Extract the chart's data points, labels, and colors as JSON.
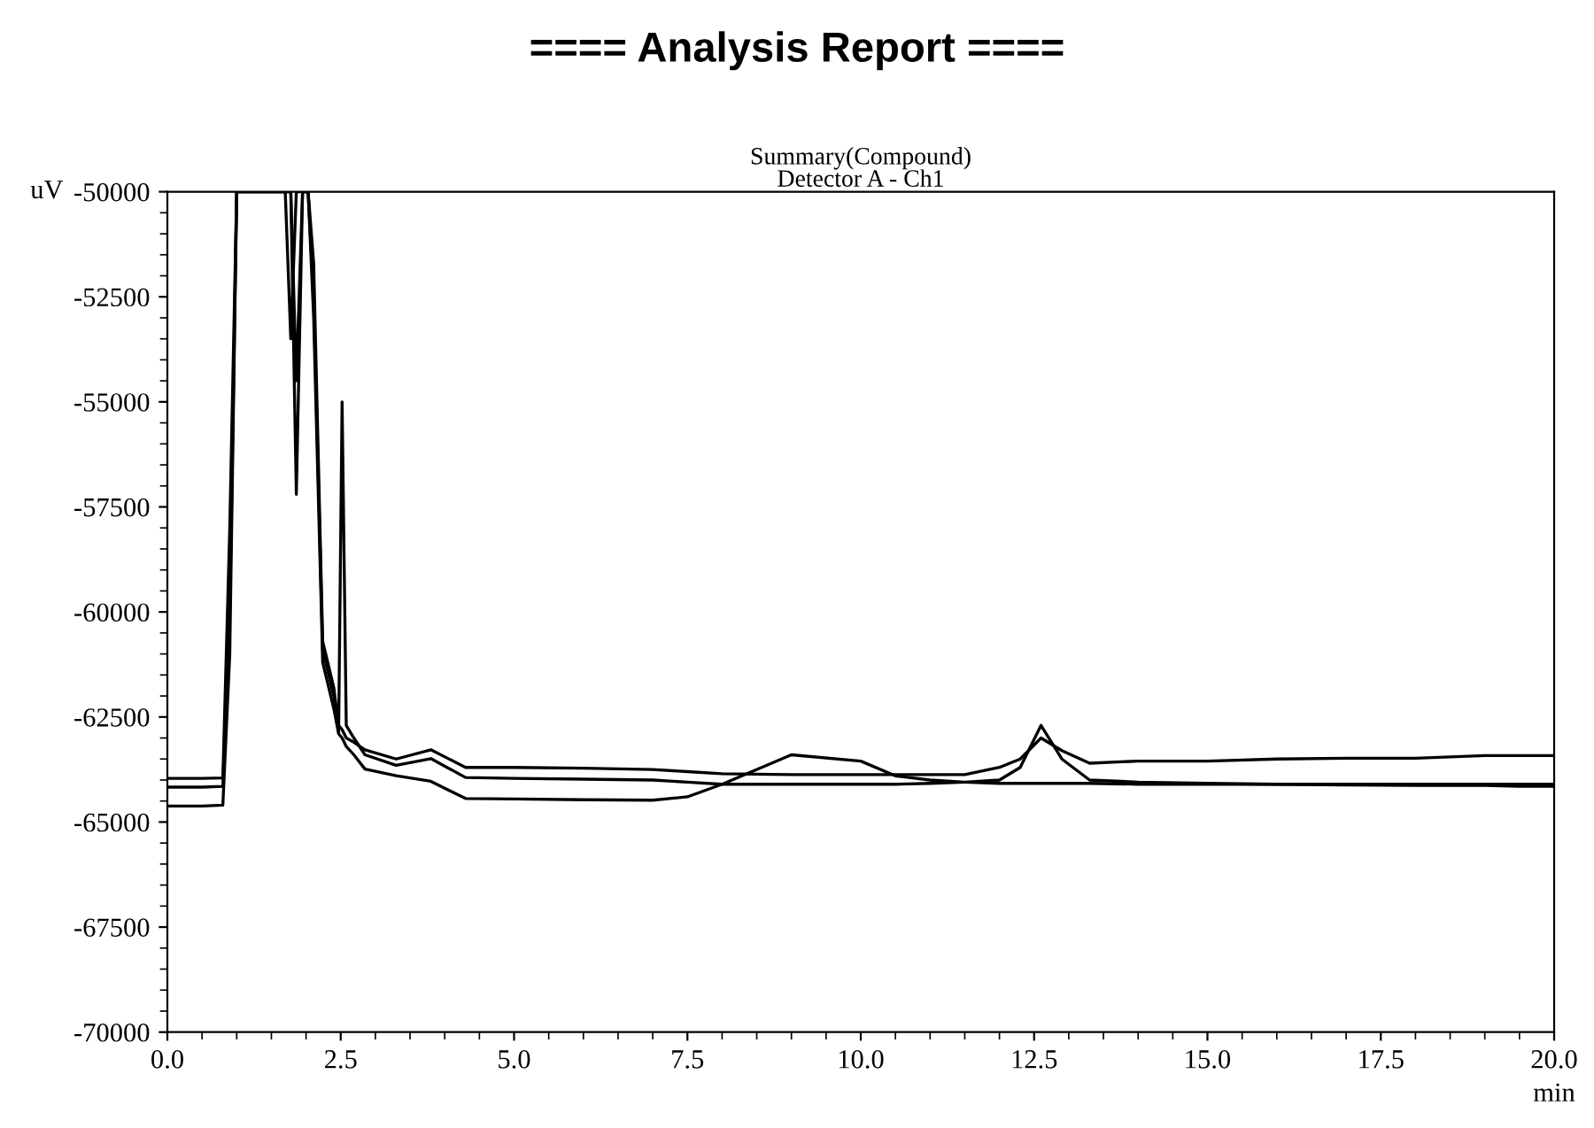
{
  "chart_data": {
    "type": "line",
    "title": "==== Analysis Report ====",
    "subtitle": "Summary(Compound)\nDetector A - Ch1",
    "xlabel": "min",
    "ylabel": "uV",
    "xlim": [
      0,
      20
    ],
    "ylim": [
      -70000,
      -50000
    ],
    "xticks": [
      {
        "value": 0,
        "label": "0.0"
      },
      {
        "value": 2.5,
        "label": "2.5"
      },
      {
        "value": 5,
        "label": "5.0"
      },
      {
        "value": 7.5,
        "label": "7.5"
      },
      {
        "value": 10,
        "label": "10.0"
      },
      {
        "value": 12.5,
        "label": "12.5"
      },
      {
        "value": 15,
        "label": "15.0"
      },
      {
        "value": 17.5,
        "label": "17.5"
      },
      {
        "value": 20,
        "label": "20.0"
      }
    ],
    "yticks": [
      -50000,
      -52500,
      -55000,
      -57500,
      -60000,
      -62500,
      -65000,
      -67500,
      -70000
    ],
    "grid": false,
    "legend": false,
    "marker": "none",
    "line_style": "solid",
    "x": [
      0,
      0.5,
      0.8,
      0.9,
      1.0,
      1.5,
      1.7,
      1.78,
      1.86,
      1.95,
      2.03,
      2.11,
      2.24,
      2.4,
      2.47,
      2.52,
      2.58,
      2.69,
      2.85,
      3.3,
      3.8,
      4.3,
      5,
      6,
      7,
      7.5,
      8,
      9,
      10,
      10.5,
      11,
      11.5,
      12,
      12.3,
      12.6,
      12.9,
      13.3,
      14,
      15,
      16,
      17,
      18,
      19,
      19.5,
      20
    ],
    "series": [
      {
        "color": "#000000",
        "values": [
          -63960,
          -63960,
          -63950,
          -58000,
          -50000,
          -50000,
          -50000,
          -53500,
          -50000,
          -50000,
          -50000,
          -51700,
          -60700,
          -61800,
          -62700,
          -62800,
          -63000,
          -63100,
          -63280,
          -63500,
          -63280,
          -63700,
          -63700,
          -63720,
          -63750,
          -63800,
          -63850,
          -63870,
          -63870,
          -63870,
          -63870,
          -63870,
          -63700,
          -63500,
          -63000,
          -63300,
          -63600,
          -63550,
          -63550,
          -63500,
          -63480,
          -63480,
          -63420,
          -63420,
          -63420
        ]
      },
      {
        "color": "#000000",
        "values": [
          -64170,
          -64170,
          -64150,
          -60000,
          -50000,
          -50000,
          -50000,
          -50000,
          -54500,
          -50000,
          -50000,
          -52500,
          -60900,
          -62000,
          -62870,
          -55000,
          -62700,
          -63000,
          -63400,
          -63650,
          -63490,
          -63940,
          -63960,
          -63980,
          -64000,
          -64050,
          -64100,
          -64100,
          -64100,
          -64100,
          -64080,
          -64050,
          -64000,
          -63700,
          -62700,
          -63500,
          -64000,
          -64050,
          -64080,
          -64100,
          -64100,
          -64100,
          -64100,
          -64100,
          -64100
        ]
      },
      {
        "color": "#000000",
        "values": [
          -64620,
          -64620,
          -64600,
          -61000,
          -50000,
          -50000,
          -50000,
          -50000,
          -57200,
          -50000,
          -50000,
          -53000,
          -61200,
          -62300,
          -62900,
          -63000,
          -63200,
          -63400,
          -63740,
          -63900,
          -64030,
          -64440,
          -64450,
          -64470,
          -64480,
          -64400,
          -64100,
          -63400,
          -63550,
          -63900,
          -64000,
          -64050,
          -64080,
          -64080,
          -64080,
          -64080,
          -64080,
          -64100,
          -64100,
          -64100,
          -64120,
          -64130,
          -64130,
          -64150,
          -64150
        ]
      }
    ]
  }
}
